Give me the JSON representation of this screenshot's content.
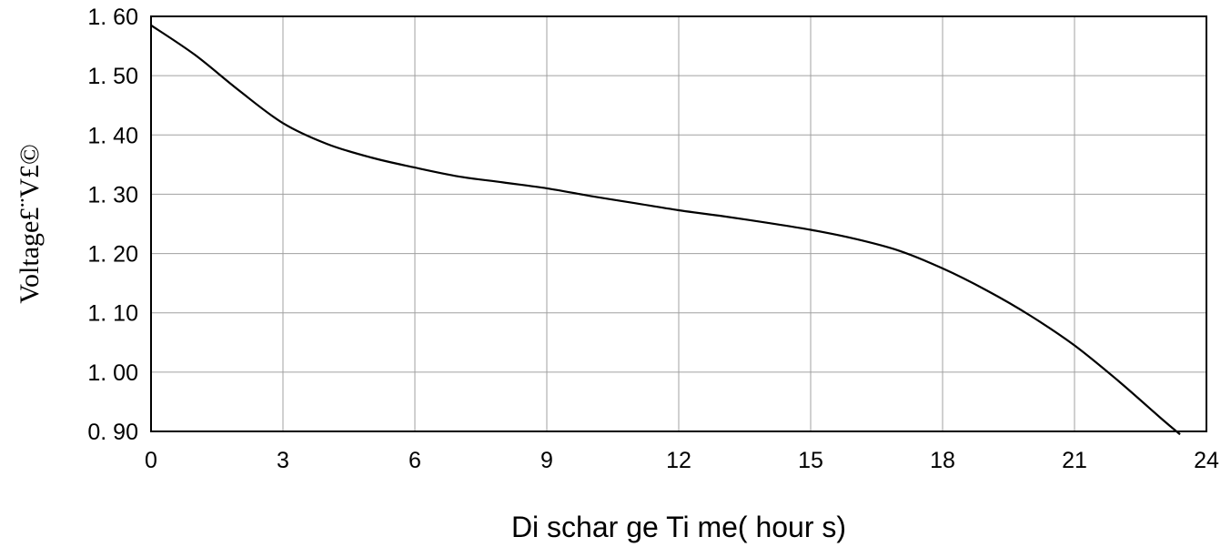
{
  "chart_data": {
    "type": "line",
    "title": "",
    "xlabel": "Di schar ge  Ti me( hour s)",
    "ylabel": "Voltage£¨V£©",
    "xlim": [
      0,
      24
    ],
    "ylim": [
      0.9,
      1.6
    ],
    "x_ticks": [
      0,
      3,
      6,
      9,
      12,
      15,
      18,
      21,
      24
    ],
    "x_tick_labels": [
      "0",
      "3",
      "6",
      "9",
      "12",
      "15",
      "18",
      "21",
      "24"
    ],
    "y_ticks": [
      0.9,
      1.0,
      1.1,
      1.2,
      1.3,
      1.4,
      1.5,
      1.6
    ],
    "y_tick_labels": [
      "0. 90",
      "1. 00",
      "1. 10",
      "1. 20",
      "1. 30",
      "1. 40",
      "1. 50",
      "1. 60"
    ],
    "grid": true,
    "series": [
      {
        "x": [
          0,
          1,
          2,
          3,
          4,
          5,
          6,
          7,
          8,
          9,
          10,
          11,
          12,
          13,
          14,
          15,
          16,
          17,
          18,
          19,
          20,
          21,
          22,
          23,
          23.4
        ],
        "y": [
          1.585,
          1.535,
          1.475,
          1.42,
          1.385,
          1.362,
          1.345,
          1.33,
          1.32,
          1.31,
          1.297,
          1.285,
          1.273,
          1.263,
          1.252,
          1.24,
          1.225,
          1.205,
          1.175,
          1.138,
          1.095,
          1.045,
          0.985,
          0.92,
          0.895
        ]
      }
    ]
  }
}
